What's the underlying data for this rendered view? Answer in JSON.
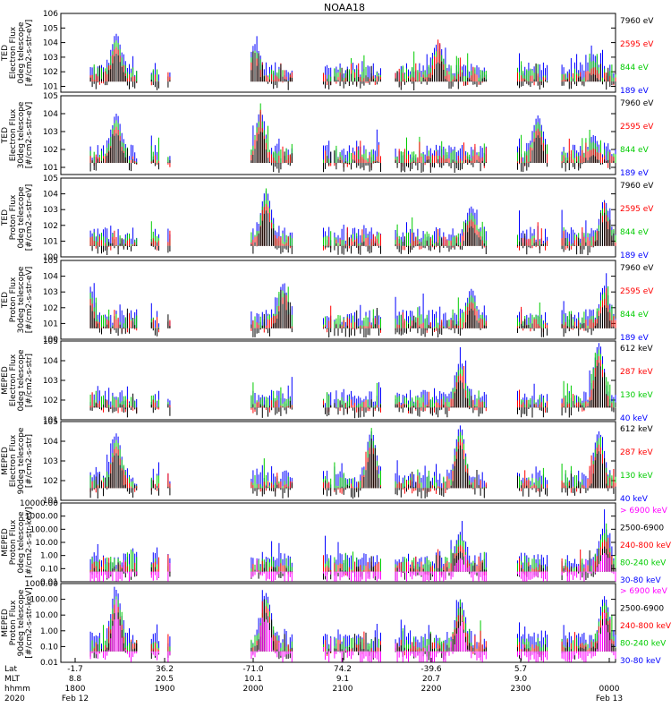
{
  "chart_data": {
    "type": "line",
    "title": "NOAA18",
    "time_range": [
      "1800",
      "0000"
    ],
    "panels": [
      {
        "ylabel": [
          "TED",
          "Electron Flux",
          "0deg telescope",
          "[#/cm2-s-str-eV]"
        ],
        "yticks": [
          "10^1",
          "10^2",
          "10^3",
          "10^4",
          "10^5",
          "10^6"
        ],
        "ylim_exp": [
          0.6,
          6
        ],
        "series": [
          {
            "name": "7960 eV",
            "color": "#000000"
          },
          {
            "name": "2595 eV",
            "color": "#ff0000"
          },
          {
            "name": "844 eV",
            "color": "#00cc00"
          },
          {
            "name": "189 eV",
            "color": "#0000ff"
          }
        ],
        "peaks": [
          {
            "t": 0.1,
            "v": 4.6
          },
          {
            "t": 0.35,
            "v": 3.9
          },
          {
            "t": 0.68,
            "v": 4.0
          },
          {
            "t": 0.96,
            "v": 3.2
          }
        ]
      },
      {
        "ylabel": [
          "TED",
          "Electron Flux",
          "30deg telescope",
          "[#/cm2-s-str-eV]"
        ],
        "yticks": [
          "10^1",
          "10^2",
          "10^3",
          "10^4",
          "10^5"
        ],
        "ylim_exp": [
          0.6,
          5
        ],
        "series": [
          {
            "name": "7960 eV",
            "color": "#000000"
          },
          {
            "name": "2595 eV",
            "color": "#ff0000"
          },
          {
            "name": "844 eV",
            "color": "#00cc00"
          },
          {
            "name": "189 eV",
            "color": "#0000ff"
          }
        ],
        "peaks": [
          {
            "t": 0.1,
            "v": 4.0
          },
          {
            "t": 0.36,
            "v": 4.1
          },
          {
            "t": 0.86,
            "v": 3.9
          },
          {
            "t": 0.96,
            "v": 2.8
          }
        ]
      },
      {
        "ylabel": [
          "TED",
          "Proton Flux",
          "0deg telescope",
          "[#/cm2-s-str-eV]"
        ],
        "yticks": [
          "10^0",
          "10^1",
          "10^2",
          "10^3",
          "10^4",
          "10^5"
        ],
        "ylim_exp": [
          0,
          5
        ],
        "series": [
          {
            "name": "7960 eV",
            "color": "#000000"
          },
          {
            "name": "2595 eV",
            "color": "#ff0000"
          },
          {
            "name": "844 eV",
            "color": "#00cc00"
          },
          {
            "name": "189 eV",
            "color": "#0000ff"
          }
        ],
        "peaks": [
          {
            "t": 0.37,
            "v": 4.2
          },
          {
            "t": 0.74,
            "v": 3.2
          },
          {
            "t": 0.98,
            "v": 3.6
          }
        ]
      },
      {
        "ylabel": [
          "TED",
          "Proton Flux",
          "30deg telescope",
          "[#/cm2-s-str-eV]"
        ],
        "yticks": [
          "10^0",
          "10^1",
          "10^2",
          "10^3",
          "10^4",
          "10^5"
        ],
        "ylim_exp": [
          0,
          5
        ],
        "series": [
          {
            "name": "7960 eV",
            "color": "#000000"
          },
          {
            "name": "2595 eV",
            "color": "#ff0000"
          },
          {
            "name": "844 eV",
            "color": "#00cc00"
          },
          {
            "name": "189 eV",
            "color": "#0000ff"
          }
        ],
        "peaks": [
          {
            "t": 0.05,
            "v": 3.5
          },
          {
            "t": 0.4,
            "v": 3.5
          },
          {
            "t": 0.74,
            "v": 3.2
          },
          {
            "t": 0.98,
            "v": 3.4
          }
        ]
      },
      {
        "ylabel": [
          "MEPED",
          "Electron Flux",
          "0deg telescope",
          "[#/cm2-s-str]"
        ],
        "yticks": [
          "10^1",
          "10^2",
          "10^3",
          "10^4",
          "10^5"
        ],
        "ylim_exp": [
          1,
          5
        ],
        "series": [
          {
            "name": "612 keV",
            "color": "#000000"
          },
          {
            "name": "287 keV",
            "color": "#ff0000"
          },
          {
            "name": "130 keV",
            "color": "#00cc00"
          },
          {
            "name": "40 keV",
            "color": "#0000ff"
          }
        ],
        "peaks": [
          {
            "t": 0.44,
            "v": 3.5
          },
          {
            "t": 0.72,
            "v": 4.0
          },
          {
            "t": 0.97,
            "v": 4.9
          }
        ]
      },
      {
        "ylabel": [
          "MEPED",
          "Electron Flux",
          "90deg telescope",
          "[#/cm2-s-str]"
        ],
        "yticks": [
          "10^1",
          "10^2",
          "10^3",
          "10^4",
          "10^5"
        ],
        "ylim_exp": [
          1,
          5
        ],
        "series": [
          {
            "name": "612 keV",
            "color": "#000000"
          },
          {
            "name": "287 keV",
            "color": "#ff0000"
          },
          {
            "name": "130 keV",
            "color": "#00cc00"
          },
          {
            "name": "40 keV",
            "color": "#0000ff"
          }
        ],
        "peaks": [
          {
            "t": 0.1,
            "v": 4.4
          },
          {
            "t": 0.56,
            "v": 4.5
          },
          {
            "t": 0.72,
            "v": 4.8
          },
          {
            "t": 0.97,
            "v": 4.5
          }
        ]
      },
      {
        "ylabel": [
          "MEPED",
          "Proton Flux",
          "0deg telescope",
          "[#/cm2-s-str-keV]"
        ],
        "yticks": [
          "0.01",
          "0.10",
          "1.00",
          "10.00",
          "100.00",
          "1000.00",
          "10000.00"
        ],
        "ylim_exp": [
          -2,
          4
        ],
        "series": [
          {
            "name": "> 6900 keV",
            "color": "#ff00ff"
          },
          {
            "name": "2500-6900",
            "color": "#000000"
          },
          {
            "name": "240-800 keV",
            "color": "#ff0000"
          },
          {
            "name": "80-240 keV",
            "color": "#00cc00"
          },
          {
            "name": "30-80 keV",
            "color": "#0000ff"
          }
        ],
        "peaks": [
          {
            "t": 0.45,
            "v": 0.5
          },
          {
            "t": 0.72,
            "v": 1.8
          },
          {
            "t": 0.98,
            "v": 2.2
          }
        ]
      },
      {
        "ylabel": [
          "MEPED",
          "Proton Flux",
          "90deg telescope",
          "[#/cm2-s-str-keV]"
        ],
        "yticks": [
          "0.01",
          "0.10",
          "1.00",
          "10.00",
          "100.00",
          "1000.00"
        ],
        "ylim_exp": [
          -2,
          3
        ],
        "series": [
          {
            "name": "> 6900 keV",
            "color": "#ff00ff"
          },
          {
            "name": "2500-6900",
            "color": "#000000"
          },
          {
            "name": "240-800 keV",
            "color": "#ff0000"
          },
          {
            "name": "80-240 keV",
            "color": "#00cc00"
          },
          {
            "name": "30-80 keV",
            "color": "#0000ff"
          }
        ],
        "peaks": [
          {
            "t": 0.1,
            "v": 2.6
          },
          {
            "t": 0.37,
            "v": 2.4
          },
          {
            "t": 0.72,
            "v": 2.0
          },
          {
            "t": 0.98,
            "v": 2.2
          }
        ]
      }
    ],
    "x_rows": [
      {
        "label": "Lat",
        "values": [
          "-1.7",
          "36.2",
          "-71.0",
          "74.2",
          "-39.6",
          "5.7",
          ""
        ]
      },
      {
        "label": "MLT",
        "values": [
          "8.8",
          "20.5",
          "10.1",
          "9.1",
          "20.7",
          "9.0",
          ""
        ]
      },
      {
        "label": "hhmm",
        "values": [
          "1800",
          "1900",
          "2000",
          "2100",
          "2200",
          "2300",
          "0000"
        ]
      },
      {
        "label": "2020",
        "values": [
          "Feb 12",
          "",
          "",
          "",
          "",
          "",
          "Feb 13"
        ]
      }
    ]
  }
}
